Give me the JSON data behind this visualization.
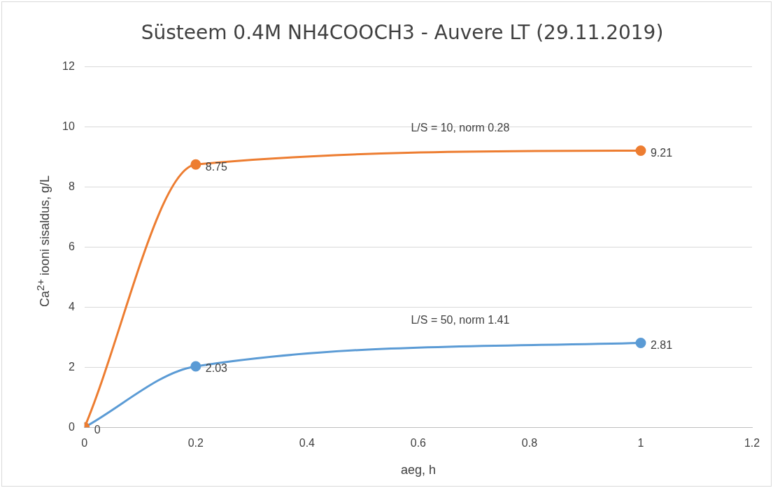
{
  "chart_data": {
    "type": "line",
    "title": "Süsteem 0.4M NH4COOCH3 - Auvere LT (29.11.2019)",
    "xlabel": "aeg, h",
    "ylabel": "Ca$^{2+}$ iooni sisaldus, g/L",
    "x": [
      0,
      0.2,
      1
    ],
    "series": [
      {
        "name": "L/S = 10, norm 0.28",
        "color": "#ed7d31",
        "values": [
          0,
          8.75,
          9.21
        ],
        "value_labels": [
          "0",
          "8.75",
          "9.21"
        ]
      },
      {
        "name": "L/S = 50, norm 1.41",
        "color": "#5b9bd5",
        "values": [
          0,
          2.03,
          2.81
        ],
        "value_labels": [
          null,
          "2.03",
          "2.81"
        ]
      }
    ],
    "xlim": [
      0,
      1.2
    ],
    "xticks": [
      0,
      0.2,
      0.4,
      0.6,
      0.8,
      1,
      1.2
    ],
    "ylim": [
      0,
      12
    ],
    "yticks": [
      0,
      2,
      4,
      6,
      8,
      10,
      12
    ],
    "grid": "y",
    "legend": false,
    "marker": "circle",
    "line_style": "solid"
  }
}
